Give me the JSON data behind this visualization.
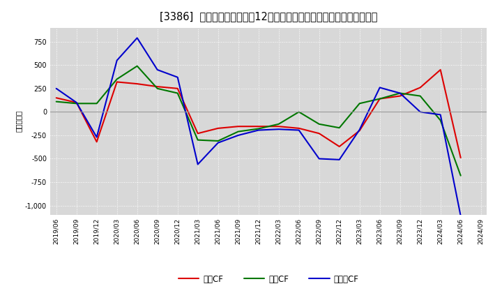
{
  "title": "[3386]  キャッシュフローの12か月移動合計の対前年同期増減額の推移",
  "ylabel": "（百万円）",
  "background_color": "#ffffff",
  "plot_background": "#d8d8d8",
  "grid_color": "#ffffff",
  "dates": [
    "2019/06",
    "2019/09",
    "2019/12",
    "2020/03",
    "2020/06",
    "2020/09",
    "2020/12",
    "2021/03",
    "2021/06",
    "2021/09",
    "2021/12",
    "2022/03",
    "2022/06",
    "2022/09",
    "2022/12",
    "2023/03",
    "2023/06",
    "2023/09",
    "2023/12",
    "2024/03",
    "2024/06",
    "2024/09"
  ],
  "operating_cf": [
    150,
    100,
    -320,
    320,
    300,
    270,
    250,
    -230,
    -175,
    -155,
    -155,
    -155,
    -175,
    -230,
    -370,
    -200,
    140,
    170,
    260,
    450,
    -490,
    null
  ],
  "investing_cf": [
    110,
    90,
    90,
    350,
    490,
    250,
    200,
    -300,
    -310,
    -210,
    -180,
    -130,
    0,
    -130,
    -170,
    90,
    140,
    200,
    170,
    -90,
    -680,
    null
  ],
  "free_cf": [
    250,
    100,
    -270,
    550,
    790,
    450,
    370,
    -560,
    -330,
    -250,
    -195,
    -185,
    -195,
    -500,
    -510,
    -190,
    260,
    200,
    0,
    -30,
    -1110,
    null
  ],
  "ylim": [
    -1100,
    900
  ],
  "yticks": [
    -1000,
    -750,
    -500,
    -250,
    0,
    250,
    500,
    750
  ],
  "line_colors": {
    "operating": "#dd0000",
    "investing": "#007700",
    "free": "#0000cc"
  },
  "legend_labels": [
    "営業CF",
    "投資CF",
    "フリーCF"
  ]
}
